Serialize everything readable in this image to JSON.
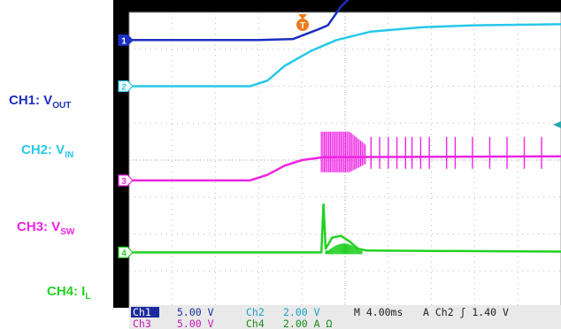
{
  "chart_data": {
    "type": "line",
    "title": "",
    "xlabel": "",
    "ylabel": "",
    "divisions": {
      "x": [
        0,
        10
      ],
      "y": [
        0,
        8
      ]
    },
    "series": [
      {
        "name": "CH1: VOUT",
        "label_main": "CH1: V",
        "label_sub": "OUT",
        "marker": "1",
        "color": "#1c2fc0",
        "x": [
          0,
          3.0,
          3.8,
          4.4,
          4.6,
          4.9,
          5.2,
          10
        ],
        "y": [
          7.25,
          7.25,
          7.28,
          7.55,
          7.65,
          8.15,
          8.5,
          8.5
        ]
      },
      {
        "name": "CH2: VIN",
        "label_main": "CH2: V",
        "label_sub": "IN",
        "marker": "2",
        "color": "#27c8ea",
        "x": [
          0,
          2.8,
          3.2,
          3.6,
          4.2,
          4.8,
          5.6,
          6.8,
          8.0,
          10
        ],
        "y": [
          6.0,
          6.0,
          6.15,
          6.55,
          6.95,
          7.25,
          7.48,
          7.6,
          7.65,
          7.68
        ]
      },
      {
        "name": "CH3: VSW",
        "label_main": "CH3: V",
        "label_sub": "SW",
        "marker": "3",
        "color": "#ee24e4",
        "x": [
          0,
          2.8,
          3.2,
          3.6,
          4.0,
          4.5,
          10
        ],
        "y": [
          3.45,
          3.45,
          3.6,
          3.85,
          4.0,
          4.08,
          4.1
        ]
      },
      {
        "name": "CH4: IL",
        "label_main": "CH4: I",
        "label_sub": "L",
        "marker": "4",
        "color": "#22d122",
        "x": [
          0,
          4.45,
          4.5,
          4.55,
          4.6,
          4.7,
          4.9,
          5.1,
          5.3,
          5.5,
          10
        ],
        "y": [
          1.5,
          1.5,
          2.8,
          1.6,
          1.7,
          1.9,
          1.95,
          1.8,
          1.6,
          1.55,
          1.52
        ]
      }
    ],
    "trigger_marker": "T"
  },
  "status_bar": {
    "row1": [
      {
        "ch": "Ch1",
        "val": "5.00 V",
        "ch_color": "#ffffff",
        "ch_bg": "#1a2aa0"
      },
      {
        "ch": "Ch2",
        "val": "2.00 V",
        "ch_color": "#1aa0c8",
        "prefix": "¹ₙ"
      }
    ],
    "row2": [
      {
        "ch": "Ch3",
        "val": "5.00 V",
        "ch_color": "#c01ab8"
      },
      {
        "ch": "Ch4",
        "val": "2.00 A Ω",
        "ch_color": "#1a8c1a",
        "prefix": "¹ₙ"
      }
    ],
    "timebase": "M 4.00ms",
    "trigger_info": "A  Ch2  ʃ   1.40 V"
  }
}
